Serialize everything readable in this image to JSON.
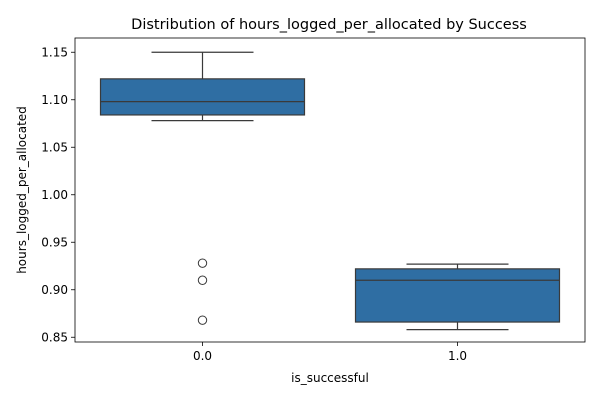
{
  "chart_data": {
    "type": "box",
    "title": "Distribution of hours_logged_per_allocated by Success",
    "xlabel": "is_successful",
    "ylabel": "hours_logged_per_allocated",
    "categories": [
      "0.0",
      "1.0"
    ],
    "ylim": [
      0.845,
      1.165
    ],
    "yticks": [
      0.85,
      0.9,
      0.95,
      1.0,
      1.05,
      1.1,
      1.15
    ],
    "ytick_labels": [
      "0.85",
      "0.90",
      "0.95",
      "1.00",
      "1.05",
      "1.10",
      "1.15"
    ],
    "grid": false,
    "box_color": "#2f6ea3",
    "edge_color": "#3a3a3a",
    "boxes": [
      {
        "category": "0.0",
        "whisker_low": 1.078,
        "q1": 1.084,
        "median": 1.098,
        "q3": 1.122,
        "whisker_high": 1.15,
        "outliers": [
          0.928,
          0.91,
          0.868
        ]
      },
      {
        "category": "1.0",
        "whisker_low": 0.858,
        "q1": 0.866,
        "median": 0.91,
        "q3": 0.922,
        "whisker_high": 0.927,
        "outliers": []
      }
    ]
  }
}
